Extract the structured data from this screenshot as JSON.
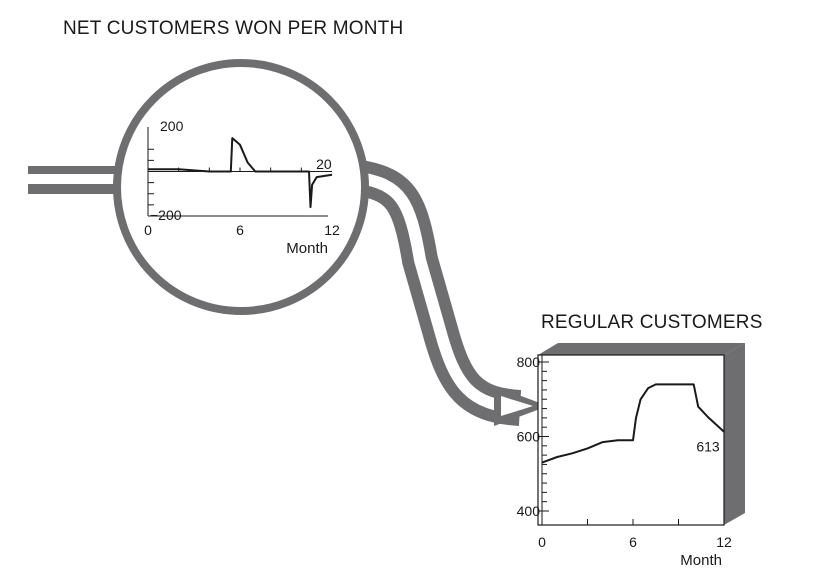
{
  "colors": {
    "pipe": "#6e6e70",
    "ink": "#1a1a1a",
    "paper": "#ffffff"
  },
  "net_title": "NET CUSTOMERS WON PER MONTH",
  "stock_title": "REGULAR CUSTOMERS",
  "chart_data": [
    {
      "type": "line",
      "title": "NET CUSTOMERS WON PER MONTH",
      "xlabel": "Month",
      "xlim": [
        0,
        12
      ],
      "ylim": [
        -200,
        200
      ],
      "xticks": [
        "0",
        "6",
        "12"
      ],
      "yticks": [
        "200",
        "−200"
      ],
      "x": [
        0,
        2,
        3,
        4,
        5,
        5.4,
        5.5,
        6,
        6.5,
        7,
        8,
        10.5,
        10.6,
        10.7,
        11,
        12
      ],
      "y": [
        10,
        10,
        5,
        0,
        0,
        0,
        150,
        120,
        40,
        0,
        0,
        0,
        -160,
        -60,
        -25,
        -15
      ],
      "annotations": [
        {
          "label": "20",
          "x": 11.6,
          "y": 20
        }
      ]
    },
    {
      "type": "line",
      "title": "REGULAR CUSTOMERS",
      "xlabel": "Month",
      "xlim": [
        0,
        12
      ],
      "ylim": [
        400,
        800
      ],
      "xticks": [
        "0",
        "6",
        "12"
      ],
      "yticks": [
        "800",
        "600",
        "400"
      ],
      "x": [
        0,
        1,
        2,
        3,
        4,
        5,
        6,
        6.2,
        6.5,
        7,
        7.5,
        8,
        10,
        10.3,
        11,
        12
      ],
      "y": [
        530,
        545,
        555,
        568,
        585,
        590,
        590,
        650,
        700,
        730,
        740,
        740,
        740,
        680,
        650,
        613
      ],
      "annotations": [
        {
          "label": "613",
          "x": 12,
          "y": 613
        }
      ]
    }
  ]
}
